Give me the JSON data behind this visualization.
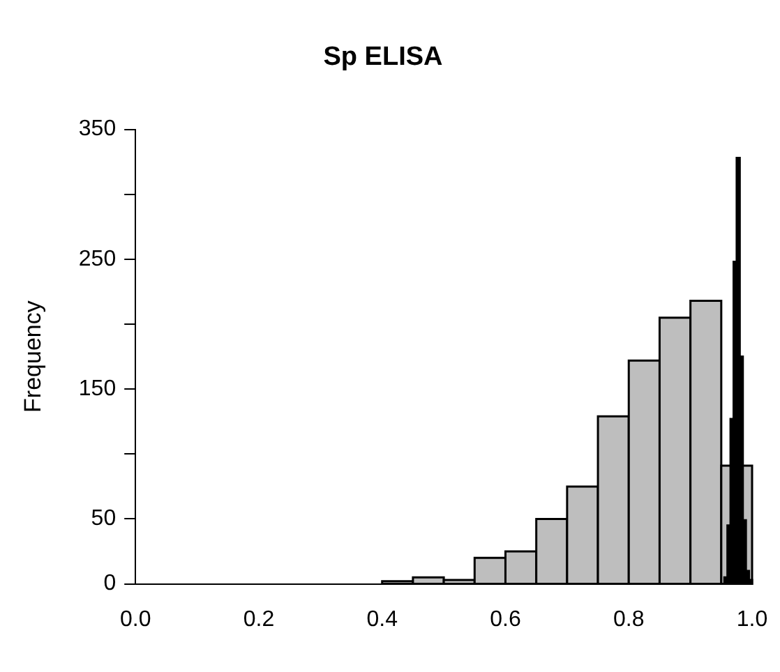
{
  "chart_data": {
    "type": "histogram",
    "title": "Sp ELISA",
    "ylabel": "Frequency",
    "xlim": [
      0,
      1
    ],
    "ylim": [
      0,
      350
    ],
    "xticks": [
      {
        "value": 0,
        "label": "0.0"
      },
      {
        "value": 0.2,
        "label": "0.2"
      },
      {
        "value": 0.4,
        "label": "0.4"
      },
      {
        "value": 0.6,
        "label": "0.6"
      },
      {
        "value": 0.8,
        "label": "0.8"
      },
      {
        "value": 1,
        "label": "1.0"
      }
    ],
    "yticks": [
      0,
      50,
      {
        "value": 100,
        "label": null
      },
      150,
      {
        "value": 200,
        "label": null
      },
      250,
      {
        "value": 300,
        "label": null
      },
      350
    ],
    "grid": false,
    "legend": false,
    "bins": [
      0.4,
      0.45,
      0.5,
      0.55,
      0.6,
      0.65,
      0.7,
      0.75,
      0.8,
      0.85,
      0.9,
      0.95,
      1.0
    ],
    "series": [
      {
        "color": "#bebebe",
        "values": [
          2,
          5,
          3,
          20,
          25,
          50,
          75,
          129,
          172,
          205,
          218,
          91
        ]
      },
      {
        "color": "#000000",
        "bins": [
          0.955,
          0.96,
          0.965,
          0.97,
          0.975,
          0.98,
          0.985,
          0.99,
          0.995,
          1.0
        ],
        "values": [
          5,
          45,
          127,
          248,
          328,
          175,
          49,
          10,
          3
        ]
      }
    ]
  }
}
